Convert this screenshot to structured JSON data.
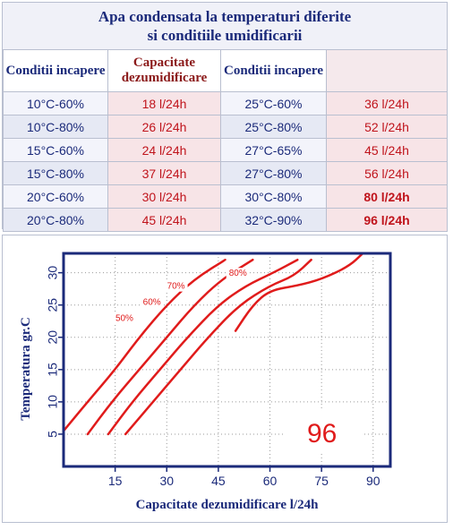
{
  "title": {
    "line1": "Apa condensata la temperaturi diferite",
    "line2": "si conditiile umidificarii"
  },
  "table": {
    "headers": {
      "room1": "Conditii incapere",
      "capacity": "Capacitate dezumidificare",
      "room2": "Conditii incapere",
      "capacity2": ""
    },
    "rows": [
      {
        "room1": "10°C-60%",
        "cap1": "18 l/24h",
        "room2": "25°C-60%",
        "cap2": "36 l/24h"
      },
      {
        "room1": "10°C-80%",
        "cap1": "26 l/24h",
        "room2": "25°C-80%",
        "cap2": "52 l/24h"
      },
      {
        "room1": "15°C-60%",
        "cap1": "24 l/24h",
        "room2": "27°C-65%",
        "cap2": "45 l/24h"
      },
      {
        "room1": "15°C-80%",
        "cap1": "37 l/24h",
        "room2": "27°C-80%",
        "cap2": "56 l/24h"
      },
      {
        "room1": "20°C-60%",
        "cap1": "30 l/24h",
        "room2": "30°C-80%",
        "cap2": "80 l/24h"
      },
      {
        "room1": "20°C-80%",
        "cap1": "45 l/24h",
        "room2": "32°C-90%",
        "cap2": "96 l/24h"
      }
    ]
  },
  "chart_data": {
    "type": "line",
    "xlabel": "Capacitate dezumidificare l/24h",
    "ylabel": "Temperatura gr.C",
    "xlim": [
      0,
      95
    ],
    "ylim": [
      0,
      33
    ],
    "xticks": [
      15,
      30,
      45,
      60,
      75,
      90
    ],
    "yticks": [
      5,
      10,
      15,
      20,
      25,
      30
    ],
    "grid": true,
    "highlight_value": "96",
    "colors": {
      "line": "#e01b1b",
      "axis": "#1b2a7a",
      "grid": "#9a9a9a",
      "highlight": "#e01b1b"
    },
    "series": [
      {
        "name": "",
        "points": [
          [
            0,
            5.5
          ],
          [
            7,
            10
          ],
          [
            15,
            15
          ],
          [
            22,
            20
          ],
          [
            30,
            25
          ],
          [
            38,
            29
          ],
          [
            47,
            32
          ]
        ]
      },
      {
        "name": "50%",
        "points": [
          [
            7,
            5
          ],
          [
            14,
            10
          ],
          [
            22,
            15
          ],
          [
            30,
            20
          ],
          [
            38,
            25
          ],
          [
            46,
            29
          ],
          [
            55,
            32
          ]
        ]
      },
      {
        "name": "60%",
        "points": [
          [
            13,
            5
          ],
          [
            20,
            10
          ],
          [
            28,
            15
          ],
          [
            36,
            20
          ],
          [
            45,
            25
          ],
          [
            53,
            28
          ],
          [
            61,
            30
          ],
          [
            68,
            32
          ]
        ]
      },
      {
        "name": "70%",
        "points": [
          [
            18,
            5
          ],
          [
            26,
            10
          ],
          [
            34,
            15
          ],
          [
            42,
            20
          ],
          [
            51,
            25
          ],
          [
            60,
            28
          ],
          [
            67,
            29.5
          ],
          [
            72,
            32
          ]
        ]
      },
      {
        "name": "80%",
        "points": [
          [
            50,
            21
          ],
          [
            55,
            25
          ],
          [
            60,
            27.3
          ],
          [
            68,
            28
          ],
          [
            75,
            29
          ],
          [
            83,
            31
          ],
          [
            87,
            33
          ]
        ]
      }
    ]
  }
}
